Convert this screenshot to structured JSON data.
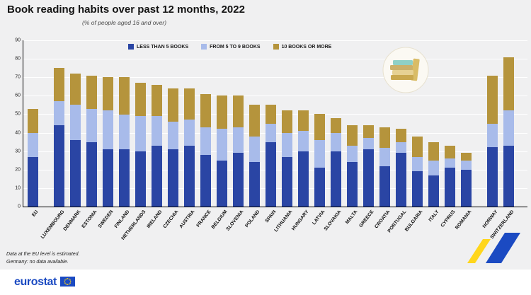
{
  "header": {
    "title": "Book reading habits over past 12 months, 2022",
    "subtitle": "(% of people aged 16 and over)"
  },
  "chart_data": {
    "type": "bar",
    "stacked": true,
    "title": "Book reading habits over past 12 months, 2022",
    "subtitle": "(% of people aged 16 and over)",
    "ylabel": "",
    "ylim": [
      0,
      90
    ],
    "ytick_interval": 10,
    "grid": true,
    "legend_position": "top",
    "categories": [
      "EU",
      "LUXEMBOURG",
      "DENMARK",
      "ESTONIA",
      "SWEDEN",
      "FINLAND",
      "NETHERLANDS",
      "IRELAND",
      "CZECHIA",
      "AUSTRIA",
      "FRANCE",
      "BELGIUM",
      "SLOVENIA",
      "POLAND",
      "SPAIN",
      "LITHUANIA",
      "HUNGARY",
      "LATVIA",
      "SLOVAKIA",
      "MALTA",
      "GREECE",
      "CROATIA",
      "PORTUGAL",
      "BULGARIA",
      "ITALY",
      "CYPRUS",
      "ROMANIA",
      "NORWAY",
      "SWITZERLAND"
    ],
    "group_breaks_after": [
      "EU",
      "ROMANIA"
    ],
    "series": [
      {
        "name": "LESS THAN 5 BOOKS",
        "color": "#2a45a4",
        "values": [
          27,
          44,
          36,
          35,
          31,
          31,
          30,
          33,
          31,
          33,
          28,
          25,
          29,
          24,
          35,
          27,
          30,
          21,
          30,
          24,
          31,
          22,
          29,
          19,
          17,
          21,
          20,
          32,
          33
        ]
      },
      {
        "name": "FROM 5 TO 9 BOOKS",
        "color": "#a8bbea",
        "values": [
          13,
          13,
          19,
          18,
          21,
          19,
          19,
          16,
          15,
          14,
          15,
          17,
          14,
          14,
          10,
          13,
          11,
          15,
          10,
          9,
          6,
          10,
          6,
          8,
          8,
          5,
          5,
          13,
          19
        ]
      },
      {
        "name": "10 BOOKS OR MORE",
        "color": "#b5943c",
        "values": [
          13,
          18,
          17,
          18,
          18,
          20,
          18,
          17,
          18,
          17,
          18,
          18,
          17,
          17,
          10,
          12,
          11,
          14,
          8,
          11,
          7,
          11,
          7,
          11,
          10,
          7,
          4,
          26,
          29
        ]
      }
    ]
  },
  "footnotes": [
    "Data at the EU level is estimated.",
    "Germany: no data available."
  ],
  "footer": {
    "brand": "eurostat"
  },
  "colors": {
    "background": "#f0f0f1",
    "gridline": "#ffffff",
    "axis": "#000000"
  }
}
